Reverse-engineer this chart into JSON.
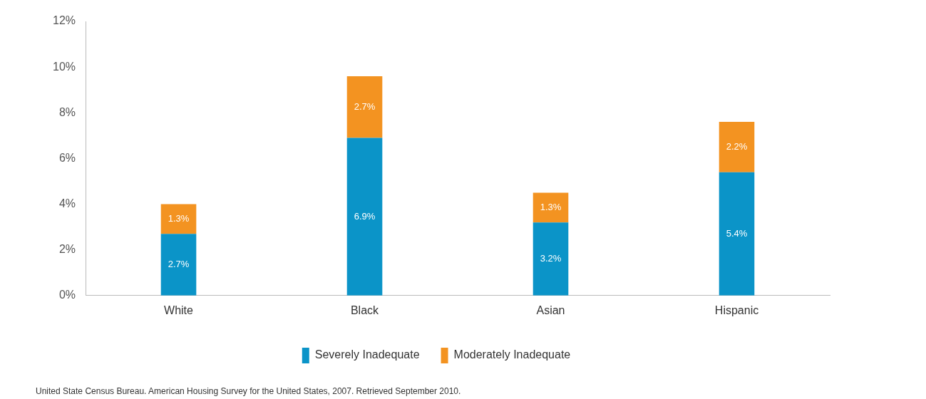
{
  "chart_data": {
    "type": "bar",
    "stacked": true,
    "categories": [
      "White",
      "Black",
      "Asian",
      "Hispanic"
    ],
    "series": [
      {
        "name": "Severely Inadequate",
        "color": "#0b94c8",
        "values": [
          2.7,
          6.9,
          3.2,
          5.4
        ],
        "value_labels": [
          "2.7%",
          "6.9%",
          "3.2%",
          "5.4%"
        ]
      },
      {
        "name": "Moderately Inadequate",
        "color": "#f39321",
        "values": [
          1.3,
          2.7,
          1.3,
          2.2
        ],
        "value_labels": [
          "1.3%",
          "2.7%",
          "1.3%",
          "2.2%"
        ]
      }
    ],
    "ylim": [
      0,
      12
    ],
    "yticks": [
      {
        "value": 0,
        "label": "0%"
      },
      {
        "value": 2,
        "label": "2%"
      },
      {
        "value": 4,
        "label": "4%"
      },
      {
        "value": 6,
        "label": "6%"
      },
      {
        "value": 8,
        "label": "8%"
      },
      {
        "value": 10,
        "label": "10%"
      },
      {
        "value": 12,
        "label": "12%"
      }
    ],
    "grid": false,
    "legend": "bottom",
    "annotations": [
      "United State Census Bureau. American Housing Survey for the United States, 2007. Retrieved September 2010."
    ]
  }
}
